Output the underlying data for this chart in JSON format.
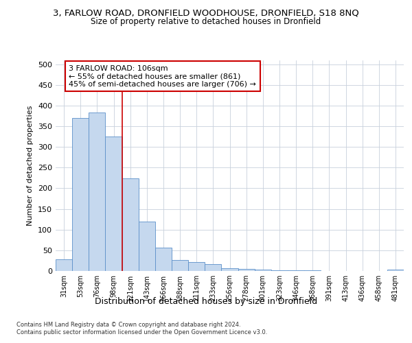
{
  "title": "3, FARLOW ROAD, DRONFIELD WOODHOUSE, DRONFIELD, S18 8NQ",
  "subtitle": "Size of property relative to detached houses in Dronfield",
  "xlabel": "Distribution of detached houses by size in Dronfield",
  "ylabel": "Number of detached properties",
  "categories": [
    "31sqm",
    "53sqm",
    "76sqm",
    "98sqm",
    "121sqm",
    "143sqm",
    "166sqm",
    "188sqm",
    "211sqm",
    "233sqm",
    "256sqm",
    "278sqm",
    "301sqm",
    "323sqm",
    "346sqm",
    "368sqm",
    "391sqm",
    "413sqm",
    "436sqm",
    "458sqm",
    "481sqm"
  ],
  "values": [
    28,
    370,
    383,
    325,
    224,
    120,
    57,
    27,
    22,
    16,
    7,
    5,
    3,
    1,
    1,
    1,
    0,
    0,
    0,
    0,
    3
  ],
  "bar_color": "#c5d8ee",
  "bar_edge_color": "#5b8fc9",
  "background_color": "#ffffff",
  "grid_color": "#c8d0dc",
  "property_line_color": "#cc0000",
  "annotation_text": "3 FARLOW ROAD: 106sqm\n← 55% of detached houses are smaller (861)\n45% of semi-detached houses are larger (706) →",
  "annotation_box_color": "#ffffff",
  "annotation_box_edge_color": "#cc0000",
  "ylim": [
    0,
    510
  ],
  "yticks": [
    0,
    50,
    100,
    150,
    200,
    250,
    300,
    350,
    400,
    450,
    500
  ],
  "footer_line1": "Contains HM Land Registry data © Crown copyright and database right 2024.",
  "footer_line2": "Contains public sector information licensed under the Open Government Licence v3.0."
}
